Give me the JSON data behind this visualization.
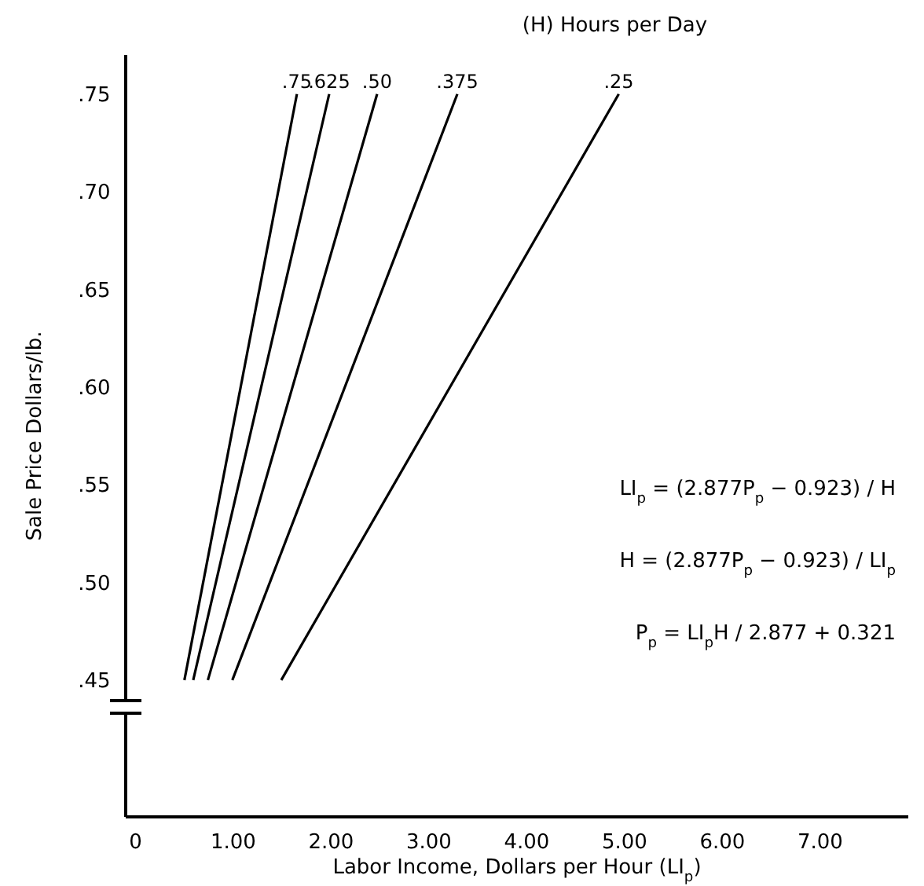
{
  "chart_data": {
    "type": "line",
    "xlabel": "Labor Income, Dollars per Hour (LI$_{p}$)",
    "ylabel": "Sale Price Dollars/lb.",
    "legend_title": "(H) Hours per Day",
    "xlim": [
      -0.1,
      7.9
    ],
    "ylim": [
      0.38,
      0.77
    ],
    "xticks": [
      0,
      {
        "value": 1,
        "label": "1.00"
      },
      {
        "value": 2,
        "label": "2.00"
      },
      {
        "value": 3,
        "label": "3.00"
      },
      {
        "value": 4,
        "label": "4.00"
      },
      {
        "value": 5,
        "label": "5.00"
      },
      {
        "value": 6,
        "label": "6.00"
      },
      {
        "value": 7,
        "label": "7.00"
      }
    ],
    "yticks": [
      {
        "value": 0.45,
        "label": ".45"
      },
      {
        "value": 0.5,
        "label": ".50"
      },
      {
        "value": 0.55,
        "label": ".55"
      },
      {
        "value": 0.6,
        "label": ".60"
      },
      {
        "value": 0.65,
        "label": ".65"
      },
      {
        "value": 0.7,
        "label": ".70"
      },
      {
        "value": 0.75,
        "label": ".75"
      }
    ],
    "grid": false,
    "marker": "none",
    "line_style": "solid",
    "series": [
      {
        "name": ".75",
        "color": "#000000",
        "x": [
          0.5,
          1.65
        ],
        "values": [
          0.45,
          0.75
        ]
      },
      {
        "name": ".625",
        "color": "#000000",
        "x": [
          0.59,
          1.98
        ],
        "values": [
          0.45,
          0.75
        ]
      },
      {
        "name": ".50",
        "color": "#000000",
        "x": [
          0.74,
          2.47
        ],
        "values": [
          0.45,
          0.75
        ]
      },
      {
        "name": ".375",
        "color": "#000000",
        "x": [
          0.99,
          3.29
        ],
        "values": [
          0.45,
          0.75
        ]
      },
      {
        "name": ".25",
        "color": "#000000",
        "x": [
          1.49,
          4.94
        ],
        "values": [
          0.45,
          0.75
        ]
      }
    ],
    "annotations": [
      "LI$_{p}$ = (2.877P$_{p}$ − 0.923) / H",
      "H = (2.877P$_{p}$ − 0.923) / LI$_{p}$",
      "P$_{p}$ = LI$_{p}$H / 2.877 + 0.321"
    ]
  }
}
